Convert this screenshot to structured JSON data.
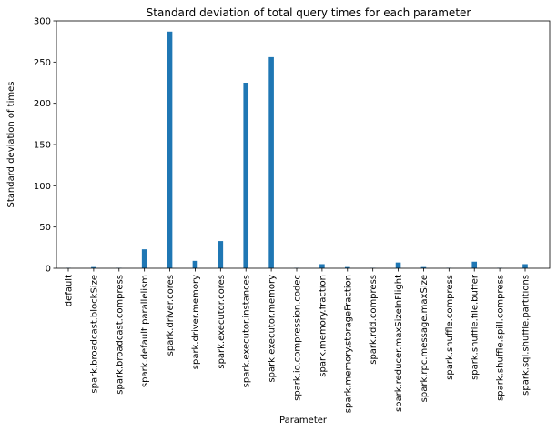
{
  "chart_data": {
    "type": "bar",
    "title": "Standard deviation of total query times for each parameter",
    "xlabel": "Parameter",
    "ylabel": "Standard deviation of times",
    "ylim": [
      0,
      300
    ],
    "yticks": [
      0,
      50,
      100,
      150,
      200,
      250,
      300
    ],
    "grid": false,
    "bar_color": "#1f77b4",
    "categories": [
      "default",
      "spark.broadcast.blockSize",
      "spark.broadcast.compress",
      "spark.default.parallelism",
      "spark.driver.cores",
      "spark.driver.memory",
      "spark.executor.cores",
      "spark.executor.instances",
      "spark.executor.memory",
      "spark.io.compression.codec",
      "spark.memory.fraction",
      "spark.memory.storageFraction",
      "spark.rdd.compress",
      "spark.reducer.maxSizeInFlight",
      "spark.rpc.message.maxSize",
      "spark.shuffle.compress",
      "spark.shuffle.file.buffer",
      "spark.shuffle.spill.compress",
      "spark.sql.shuffle.partitions"
    ],
    "values": [
      0.5,
      1.5,
      0.5,
      23,
      287,
      9,
      33,
      225,
      256,
      0.5,
      5,
      1.5,
      0.5,
      7,
      1.5,
      0.5,
      8,
      0.5,
      5
    ]
  }
}
